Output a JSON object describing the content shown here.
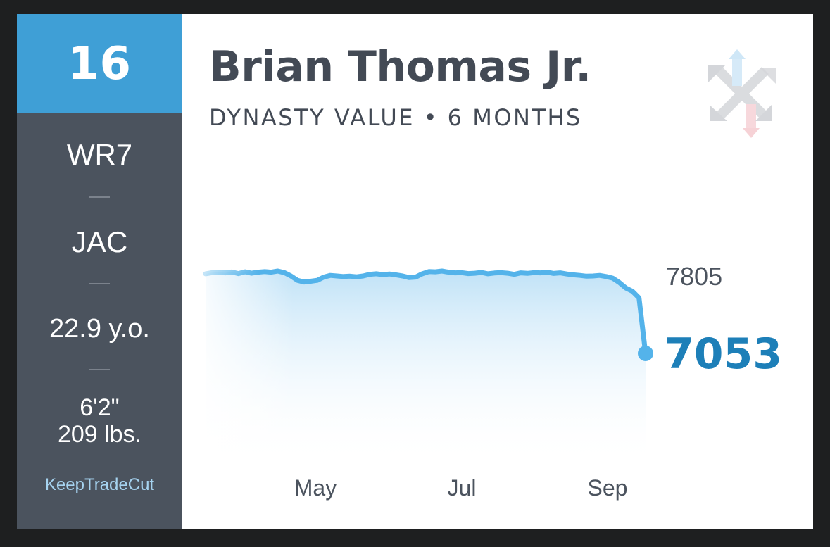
{
  "player": {
    "rank": "16",
    "position_rank": "WR7",
    "team": "JAC",
    "age": "22.9 y.o.",
    "height": "6'2\"",
    "weight": "209 lbs.",
    "name": "Brian Thomas Jr.",
    "subtitle": "DYNASTY VALUE • 6 MONTHS"
  },
  "brand": "KeepTradeCut",
  "icons": {
    "logo": "keeptradecut-arrows-logo"
  },
  "colors": {
    "sidebar": "#4b535e",
    "rank_bg": "#3f9fd6",
    "line": "#54b3ea",
    "current_value": "#1d7fb8"
  },
  "chart_data": {
    "type": "area",
    "x_tick_labels": [
      "May",
      "Jul",
      "Sep"
    ],
    "max_label": "7805",
    "current_label": "7053",
    "y_range": [
      7053,
      7805
    ],
    "series": [
      {
        "values": [
          7780,
          7790,
          7795,
          7788,
          7796,
          7782,
          7798,
          7785,
          7795,
          7800,
          7795,
          7805,
          7790,
          7760,
          7720,
          7705,
          7712,
          7720,
          7750,
          7765,
          7760,
          7755,
          7758,
          7752,
          7760,
          7775,
          7780,
          7772,
          7778,
          7770,
          7760,
          7745,
          7750,
          7780,
          7800,
          7798,
          7805,
          7795,
          7788,
          7790,
          7782,
          7785,
          7792,
          7780,
          7787,
          7790,
          7785,
          7775,
          7788,
          7784,
          7790,
          7788,
          7795,
          7783,
          7788,
          7778,
          7770,
          7765,
          7758,
          7760,
          7765,
          7755,
          7740,
          7700,
          7650,
          7620,
          7560,
          7053
        ]
      }
    ]
  }
}
